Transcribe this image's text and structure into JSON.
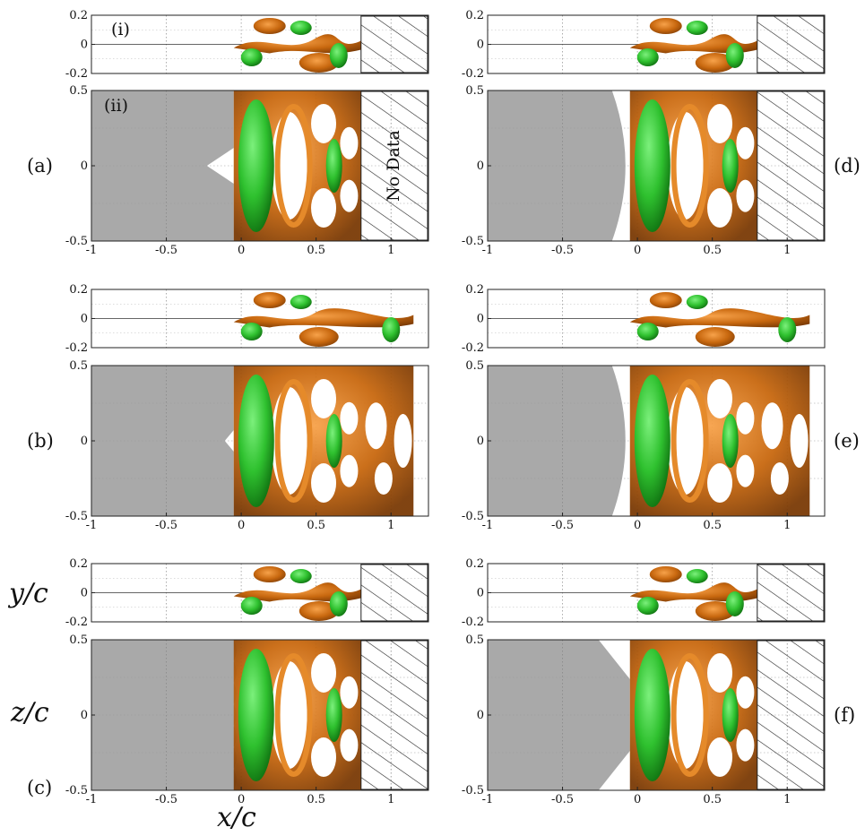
{
  "figure": {
    "xlabel": "x/c",
    "ylabel_top": "y/c",
    "ylabel_bottom": "z/c",
    "subplot_i": "(i)",
    "subplot_ii": "(ii)",
    "no_data": "No Data",
    "x_ticks": [
      "-1",
      "-0.5",
      "0",
      "0.5",
      "1"
    ],
    "y_ticks_top": [
      "0.2",
      "0",
      "-0.2"
    ],
    "y_ticks_bottom": [
      "0.5",
      "0",
      "-0.5"
    ],
    "x_range": [
      -1,
      1.25
    ],
    "y_range_top": [
      -0.2,
      0.2
    ],
    "y_range_bottom": [
      -0.5,
      0.5
    ],
    "colors": {
      "body": "#a9a9a9",
      "vortex_orange": "#c8680f",
      "vortex_green": "#2fc12f"
    },
    "panels": [
      {
        "id": "a",
        "label": "(a)",
        "nose": "v-notch",
        "data_end_x": 0.8,
        "no_data_region": true
      },
      {
        "id": "b",
        "label": "(b)",
        "nose": "small-notch",
        "data_end_x": 1.15,
        "no_data_region": false
      },
      {
        "id": "c",
        "label": "(c)",
        "nose": "wavy",
        "data_end_x": 0.8,
        "no_data_region": true
      },
      {
        "id": "d",
        "label": "(d)",
        "nose": "convex",
        "data_end_x": 0.8,
        "no_data_region": true
      },
      {
        "id": "e",
        "label": "(e)",
        "nose": "convex",
        "data_end_x": 1.15,
        "no_data_region": false
      },
      {
        "id": "f",
        "label": "(f)",
        "nose": "chevron",
        "data_end_x": 0.8,
        "no_data_region": true
      }
    ]
  }
}
